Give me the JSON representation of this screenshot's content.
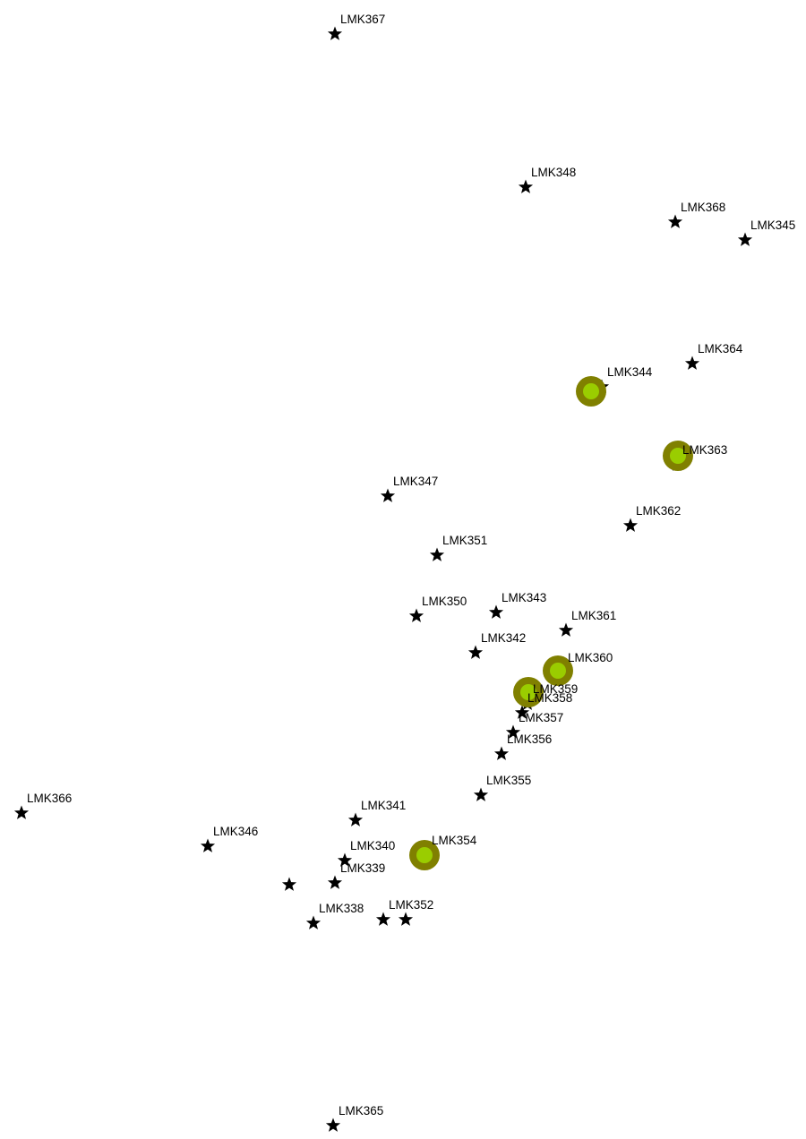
{
  "map": {
    "landmarks": [
      {
        "label": "LMK367",
        "icon": "star-icon"
      },
      {
        "label": "LMK348",
        "icon": "star-icon"
      },
      {
        "label": "LMK368",
        "icon": "star-icon"
      },
      {
        "label": "LMK345",
        "icon": "star-icon"
      },
      {
        "label": "LMK364",
        "icon": "star-icon"
      },
      {
        "label": "LMK344",
        "icon": "star-icon"
      },
      {
        "label": "LMK363",
        "icon": "star-icon"
      },
      {
        "label": "LMK347",
        "icon": "star-icon"
      },
      {
        "label": "LMK362",
        "icon": "star-icon"
      },
      {
        "label": "LMK351",
        "icon": "star-icon"
      },
      {
        "label": "LMK350",
        "icon": "star-icon"
      },
      {
        "label": "LMK343",
        "icon": "star-icon"
      },
      {
        "label": "LMK361",
        "icon": "star-icon"
      },
      {
        "label": "LMK342",
        "icon": "star-icon"
      },
      {
        "label": "LMK360",
        "icon": "star-icon"
      },
      {
        "label": "LMK359",
        "icon": "star-icon"
      },
      {
        "label": "LMK358",
        "icon": "star-icon"
      },
      {
        "label": "LMK357",
        "icon": "star-icon"
      },
      {
        "label": "LMK356",
        "icon": "star-icon"
      },
      {
        "label": "LMK355",
        "icon": "star-icon"
      },
      {
        "label": "LMK366",
        "icon": "star-icon"
      },
      {
        "label": "LMK341",
        "icon": "star-icon"
      },
      {
        "label": "LMK346",
        "icon": "star-icon"
      },
      {
        "label": "LMK340",
        "icon": "star-icon"
      },
      {
        "label": "LMK354",
        "icon": "star-icon"
      },
      {
        "label": "LMK339",
        "icon": "star-icon"
      },
      {
        "label": "",
        "icon": "star-icon"
      },
      {
        "label": "LMK338",
        "icon": "star-icon"
      },
      {
        "label": "LMK352",
        "icon": "star-icon"
      },
      {
        "label": "",
        "icon": "star-icon"
      },
      {
        "label": "LMK365",
        "icon": "star-icon"
      }
    ],
    "markers": [
      {
        "icon": "highlight-circle-icon",
        "near": "LMK344"
      },
      {
        "icon": "highlight-circle-icon",
        "near": "LMK363"
      },
      {
        "icon": "highlight-circle-icon",
        "near": "LMK360"
      },
      {
        "icon": "highlight-circle-icon",
        "near": "LMK358"
      },
      {
        "icon": "highlight-circle-icon",
        "near": "LMK354"
      }
    ],
    "colors": {
      "star": "#000000",
      "label": "#000000",
      "marker_outer": "#808000",
      "marker_inner": "#9acd00",
      "background": "#ffffff"
    }
  }
}
